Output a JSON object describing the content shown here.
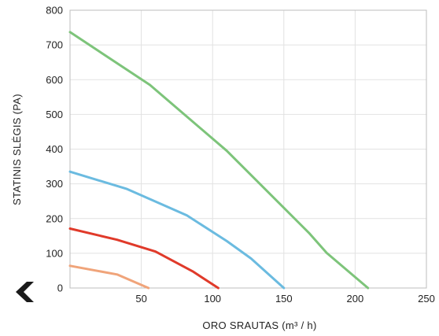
{
  "chart_data": {
    "type": "line",
    "title": "",
    "xlabel": "ORO SRAUTAS (m³ / h)",
    "ylabel": "STATINIS SLĖGIS (PA)",
    "xlim": [
      0,
      250
    ],
    "ylim": [
      0,
      800
    ],
    "xticks": [
      50,
      100,
      150,
      200,
      250
    ],
    "yticks": [
      0,
      100,
      200,
      300,
      400,
      500,
      600,
      700,
      800
    ],
    "grid": true,
    "legend": "none",
    "series": [
      {
        "color": "#7dc47a",
        "points": [
          [
            0,
            737
          ],
          [
            56,
            585
          ],
          [
            110,
            395
          ],
          [
            168,
            157
          ],
          [
            180,
            101
          ],
          [
            209,
            0
          ]
        ]
      },
      {
        "color": "#6bbbe0",
        "points": [
          [
            0,
            335
          ],
          [
            40,
            285
          ],
          [
            82,
            209
          ],
          [
            110,
            135
          ],
          [
            127,
            85
          ],
          [
            150,
            0
          ]
        ]
      },
      {
        "color": "#e03a2a",
        "points": [
          [
            0,
            171
          ],
          [
            33,
            139
          ],
          [
            60,
            105
          ],
          [
            86,
            48
          ],
          [
            104,
            0
          ]
        ]
      },
      {
        "color": "#f0a47a",
        "points": [
          [
            0,
            64
          ],
          [
            33,
            39
          ],
          [
            55,
            0
          ]
        ]
      }
    ]
  },
  "nav": {
    "back_icon": "chevron-left-icon",
    "back_color": "#1a1a1a"
  }
}
